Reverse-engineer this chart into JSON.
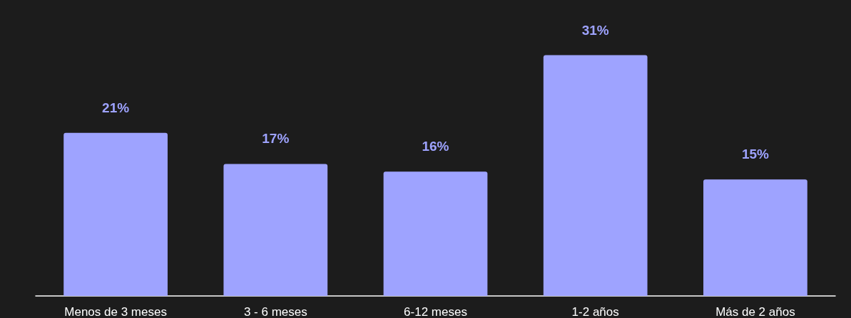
{
  "chart_data": {
    "type": "bar",
    "categories": [
      "Menos de 3 meses",
      "3 - 6 meses",
      "6-12 meses",
      "1-2 años",
      "Más de 2 años"
    ],
    "values": [
      21,
      17,
      16,
      31,
      15
    ],
    "value_labels": [
      "21%",
      "17%",
      "16%",
      "31%",
      "15%"
    ],
    "color": "#9ea3ff",
    "tick_labels": "x"
  }
}
